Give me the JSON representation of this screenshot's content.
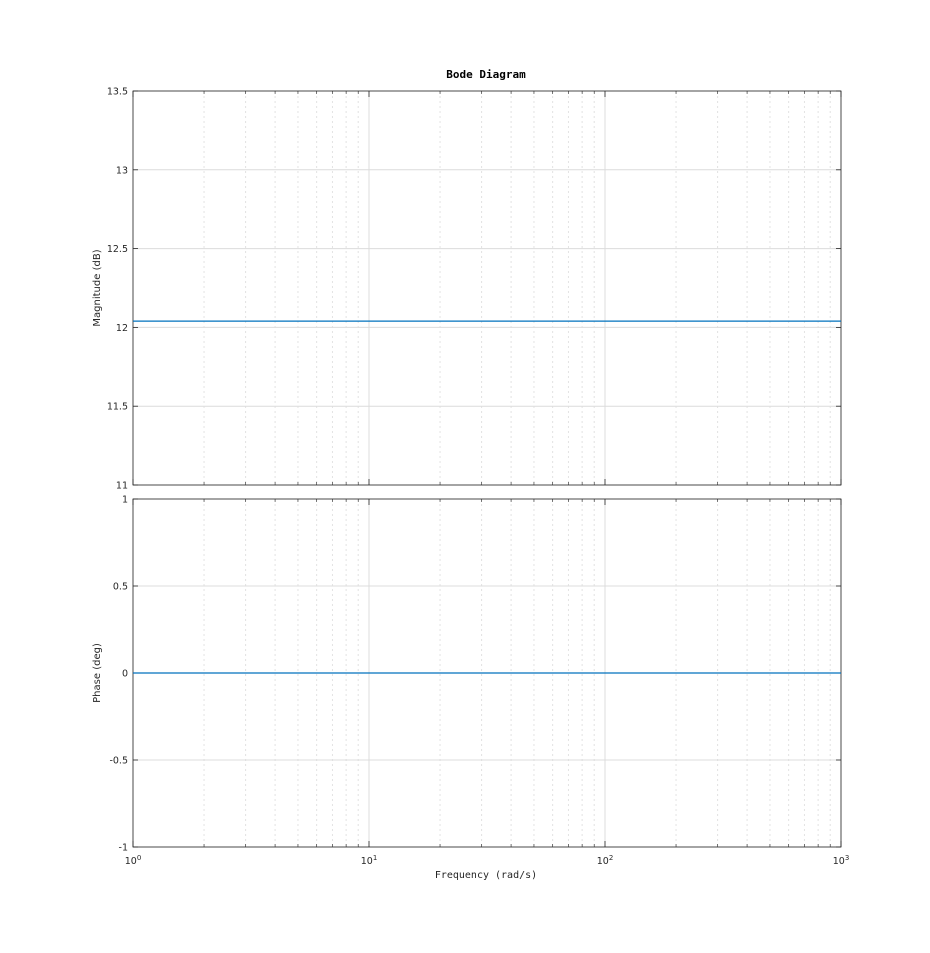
{
  "chart_data": {
    "type": "line",
    "title": "Bode Diagram",
    "xlabel": "Frequency (rad/s)",
    "x_scale": "log",
    "xlim": [
      1,
      1000
    ],
    "x_ticks": [
      {
        "value": 1,
        "base": "10",
        "exp": "0"
      },
      {
        "value": 10,
        "base": "10",
        "exp": "1"
      },
      {
        "value": 100,
        "base": "10",
        "exp": "2"
      },
      {
        "value": 1000,
        "base": "10",
        "exp": "3"
      }
    ],
    "grid": true,
    "color": "#0072bd",
    "panels": [
      {
        "ylabel": "Magnitude (dB)",
        "ylim": [
          11,
          13.5
        ],
        "y_ticks": [
          "11",
          "11.5",
          "12",
          "12.5",
          "13",
          "13.5"
        ],
        "y_tick_values": [
          11,
          11.5,
          12,
          12.5,
          13,
          13.5
        ],
        "series": [
          {
            "x": [
              1,
              1000
            ],
            "y": [
              12.04,
              12.04
            ]
          }
        ]
      },
      {
        "ylabel": "Phase (deg)",
        "ylim": [
          -1,
          1
        ],
        "y_ticks": [
          "-1",
          "-0.5",
          "0",
          "0.5",
          "1"
        ],
        "y_tick_values": [
          -1,
          -0.5,
          0,
          0.5,
          1
        ],
        "series": [
          {
            "x": [
              1,
              1000
            ],
            "y": [
              0,
              0
            ]
          }
        ]
      }
    ]
  }
}
